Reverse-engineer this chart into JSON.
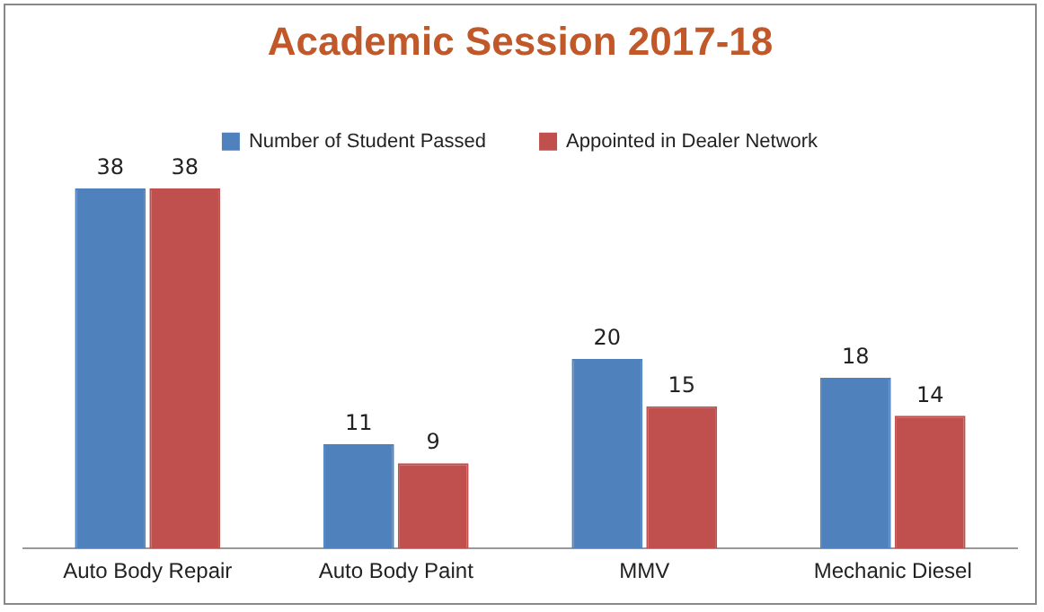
{
  "chart_data": {
    "type": "bar",
    "title": "Academic Session 2017-18",
    "categories": [
      "Auto Body Repair",
      "Auto Body Paint",
      "MMV",
      "Mechanic Diesel"
    ],
    "series": [
      {
        "name": "Number of Student Passed",
        "color": "#4f81bd",
        "values": [
          38,
          11,
          20,
          18
        ]
      },
      {
        "name": "Appointed in Dealer Network",
        "color": "#c0504d",
        "values": [
          38,
          9,
          15,
          14
        ]
      }
    ],
    "data_labels": true,
    "legend": "top",
    "grid": false
  }
}
